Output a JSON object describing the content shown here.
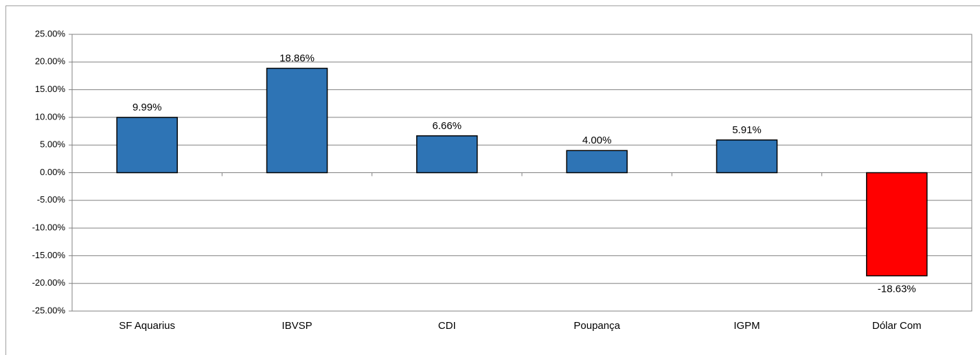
{
  "chart_data": {
    "type": "bar",
    "categories": [
      "SF Aquarius",
      "IBVSP",
      "CDI",
      "Poupança",
      "IGPM",
      "Dólar Com"
    ],
    "values": [
      9.99,
      18.86,
      6.66,
      4.0,
      5.91,
      -18.63
    ],
    "value_labels": [
      "9.99%",
      "18.86%",
      "6.66%",
      "4.00%",
      "5.91%",
      "-18.63%"
    ],
    "colors": [
      "#2e74b5",
      "#2e74b5",
      "#2e74b5",
      "#2e74b5",
      "#2e74b5",
      "#ff0000"
    ],
    "ylim": [
      -25,
      25
    ],
    "yticks": [
      {
        "value": -25,
        "label": "-25.00%"
      },
      {
        "value": -20,
        "label": "-20.00%"
      },
      {
        "value": -15,
        "label": "-15.00%"
      },
      {
        "value": -10,
        "label": "-10.00%"
      },
      {
        "value": -5,
        "label": "-5.00%"
      },
      {
        "value": 0,
        "label": "0.00%"
      },
      {
        "value": 5,
        "label": "5.00%"
      },
      {
        "value": 10,
        "label": "10.00%"
      },
      {
        "value": 15,
        "label": "15.00%"
      },
      {
        "value": 20,
        "label": "20.00%"
      },
      {
        "value": 25,
        "label": "25.00%"
      }
    ],
    "grid": true
  }
}
